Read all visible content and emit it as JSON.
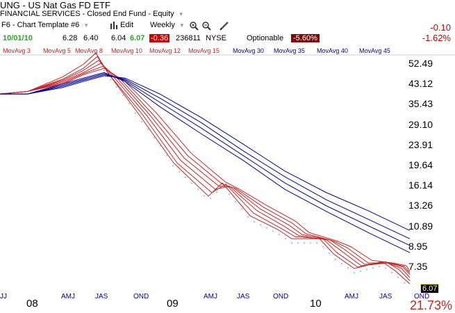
{
  "header": {
    "title": "UNG - US Nat Gas FD ETF",
    "category": "FINANCIAL SERVICES - Closed End Fund - Equity",
    "template": "F6 - Chart Template #6",
    "edit_label": "Edit",
    "period": "Weekly",
    "quote": {
      "date": "10/01/10",
      "open": "6.28",
      "high": "6.40",
      "low": "6.04",
      "close": "6.07",
      "change": "-0.36",
      "volume": "236811",
      "exchange": "NYSE",
      "optionable": "Optionable",
      "pct_change": "-5.60%"
    },
    "net_change": "-0.10",
    "net_pct": "-1.62%"
  },
  "icons": [
    "bar-chart-icon",
    "zoom-in-icon",
    "zoom-out-icon",
    "pencil-icon",
    "chevron-down-icon"
  ],
  "colors": {
    "short_ma": "#cc2222",
    "long_ma": "#000099",
    "price_dots": "#66cccc",
    "negative": "#cc0000"
  },
  "footer": {
    "pct": "21.73%",
    "last_price": "6.07"
  },
  "chart_data": {
    "type": "line",
    "y_scale": "log",
    "ylim": [
      7.0,
      60.0
    ],
    "y_ticks": [
      "52.49",
      "43.12",
      "35.43",
      "29.10",
      "23.91",
      "19.64",
      "16.14",
      "13.26",
      "10.89",
      "8.95",
      "7.35"
    ],
    "x_ticks": [
      "JJ",
      "08",
      "AMJ",
      "JAS",
      "OND",
      "09",
      "AMJ",
      "JAS",
      "OND",
      "10",
      "AMJ",
      "JAS",
      "OND"
    ],
    "series": [
      {
        "name": "MovAvg 3",
        "group": "short",
        "points": [
          [
            0,
            39
          ],
          [
            40,
            40
          ],
          [
            90,
            46
          ],
          [
            120,
            52
          ],
          [
            138,
            58
          ],
          [
            155,
            48
          ],
          [
            200,
            32
          ],
          [
            250,
            20
          ],
          [
            300,
            14.5
          ],
          [
            320,
            16.5
          ],
          [
            360,
            12.0
          ],
          [
            400,
            10.5
          ],
          [
            420,
            9.6
          ],
          [
            460,
            9.6
          ],
          [
            480,
            8.3
          ],
          [
            510,
            7.2
          ],
          [
            550,
            7.7
          ],
          [
            570,
            7.0
          ],
          [
            590,
            6.2
          ]
        ]
      },
      {
        "name": "MovAvg 5",
        "group": "short",
        "points": [
          [
            0,
            39
          ],
          [
            40,
            40
          ],
          [
            90,
            45
          ],
          [
            120,
            50
          ],
          [
            140,
            56
          ],
          [
            160,
            46
          ],
          [
            205,
            32
          ],
          [
            255,
            20
          ],
          [
            305,
            15
          ],
          [
            325,
            16.3
          ],
          [
            365,
            12.3
          ],
          [
            405,
            10.6
          ],
          [
            425,
            9.8
          ],
          [
            465,
            9.6
          ],
          [
            485,
            8.4
          ],
          [
            515,
            7.3
          ],
          [
            555,
            7.7
          ],
          [
            575,
            7.1
          ],
          [
            590,
            6.4
          ]
        ]
      },
      {
        "name": "MovAvg 8",
        "group": "short",
        "points": [
          [
            0,
            39
          ],
          [
            40,
            40
          ],
          [
            90,
            44.5
          ],
          [
            120,
            49
          ],
          [
            142,
            54
          ],
          [
            165,
            45.5
          ],
          [
            210,
            32
          ],
          [
            260,
            20.5
          ],
          [
            310,
            15.5
          ],
          [
            330,
            16
          ],
          [
            370,
            12.6
          ],
          [
            410,
            10.8
          ],
          [
            430,
            9.9
          ],
          [
            470,
            9.5
          ],
          [
            490,
            8.6
          ],
          [
            520,
            7.4
          ],
          [
            558,
            7.6
          ],
          [
            578,
            7.2
          ],
          [
            590,
            6.6
          ]
        ]
      },
      {
        "name": "MovAvg 10",
        "group": "short",
        "points": [
          [
            0,
            39
          ],
          [
            40,
            40
          ],
          [
            90,
            44
          ],
          [
            120,
            48
          ],
          [
            145,
            52.5
          ],
          [
            170,
            45
          ],
          [
            215,
            32
          ],
          [
            265,
            21
          ],
          [
            315,
            16
          ],
          [
            335,
            15.8
          ],
          [
            375,
            12.8
          ],
          [
            415,
            11
          ],
          [
            435,
            10
          ],
          [
            475,
            9.5
          ],
          [
            495,
            8.7
          ],
          [
            525,
            7.5
          ],
          [
            560,
            7.6
          ],
          [
            580,
            7.3
          ],
          [
            590,
            6.8
          ]
        ]
      },
      {
        "name": "MovAvg 12",
        "group": "short",
        "points": [
          [
            0,
            39
          ],
          [
            40,
            40
          ],
          [
            90,
            43.5
          ],
          [
            120,
            47.5
          ],
          [
            148,
            51
          ],
          [
            175,
            44.5
          ],
          [
            220,
            32
          ],
          [
            270,
            21.5
          ],
          [
            320,
            16.3
          ],
          [
            340,
            15.6
          ],
          [
            380,
            13
          ],
          [
            420,
            11.2
          ],
          [
            440,
            10.1
          ],
          [
            480,
            9.4
          ],
          [
            500,
            8.8
          ],
          [
            530,
            7.6
          ],
          [
            562,
            7.6
          ],
          [
            582,
            7.35
          ],
          [
            590,
            6.9
          ]
        ]
      },
      {
        "name": "MovAvg 15",
        "group": "short",
        "points": [
          [
            0,
            39
          ],
          [
            40,
            40
          ],
          [
            90,
            43
          ],
          [
            120,
            47
          ],
          [
            150,
            50
          ],
          [
            180,
            44
          ],
          [
            225,
            32.5
          ],
          [
            275,
            22
          ],
          [
            325,
            16.6
          ],
          [
            345,
            15.5
          ],
          [
            385,
            13.2
          ],
          [
            425,
            11.4
          ],
          [
            445,
            10.2
          ],
          [
            485,
            9.4
          ],
          [
            505,
            8.9
          ],
          [
            535,
            7.8
          ],
          [
            565,
            7.6
          ],
          [
            585,
            7.4
          ],
          [
            590,
            7.0
          ]
        ]
      },
      {
        "name": "MovAvg 30",
        "group": "long",
        "points": [
          [
            0,
            39
          ],
          [
            40,
            39
          ],
          [
            90,
            41.5
          ],
          [
            120,
            44
          ],
          [
            150,
            46.5
          ],
          [
            180,
            45.5
          ],
          [
            230,
            39
          ],
          [
            290,
            31
          ],
          [
            350,
            24
          ],
          [
            410,
            18.5
          ],
          [
            470,
            15
          ],
          [
            530,
            12.6
          ],
          [
            590,
            10.4
          ]
        ]
      },
      {
        "name": "MovAvg 35",
        "group": "long",
        "points": [
          [
            0,
            39
          ],
          [
            40,
            39
          ],
          [
            90,
            42
          ],
          [
            120,
            44.5
          ],
          [
            150,
            47
          ],
          [
            180,
            45
          ],
          [
            230,
            37.5
          ],
          [
            290,
            29.5
          ],
          [
            350,
            22.5
          ],
          [
            410,
            17.5
          ],
          [
            470,
            14
          ],
          [
            530,
            11.6
          ],
          [
            590,
            9.6
          ]
        ]
      },
      {
        "name": "MovAvg 40",
        "group": "long",
        "points": [
          [
            0,
            39
          ],
          [
            40,
            39
          ],
          [
            90,
            42.5
          ],
          [
            120,
            45
          ],
          [
            150,
            47.5
          ],
          [
            180,
            44.5
          ],
          [
            230,
            36
          ],
          [
            290,
            28
          ],
          [
            350,
            21.5
          ],
          [
            410,
            16.5
          ],
          [
            470,
            13.2
          ],
          [
            530,
            10.9
          ],
          [
            590,
            9.0
          ]
        ]
      },
      {
        "name": "MovAvg 45",
        "group": "long",
        "points": [
          [
            0,
            39
          ],
          [
            40,
            39
          ],
          [
            90,
            43
          ],
          [
            120,
            45.5
          ],
          [
            150,
            48
          ],
          [
            180,
            44
          ],
          [
            230,
            34.5
          ],
          [
            290,
            26.5
          ],
          [
            350,
            20.5
          ],
          [
            410,
            15.5
          ],
          [
            470,
            12.5
          ],
          [
            530,
            10.2
          ],
          [
            590,
            8.4
          ]
        ]
      }
    ]
  }
}
